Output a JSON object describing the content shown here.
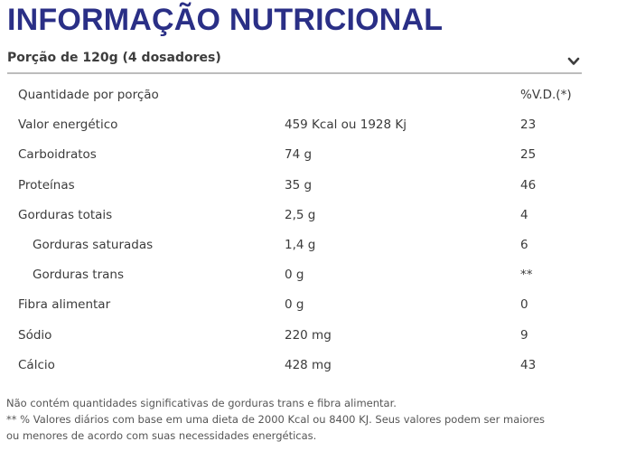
{
  "title": "INFORMAÇÃO NUTRICIONAL",
  "serving": {
    "label": "Porção de 120g (4 dosadores)",
    "expand_icon": "chevron-down-icon"
  },
  "table": {
    "header": {
      "name": "Quantidade por porção",
      "amount": "",
      "vd": "%V.D.(*)"
    },
    "rows": [
      {
        "name": "Valor energético",
        "amount": "459 Kcal ou 1928 Kj",
        "vd": "23",
        "indent": false
      },
      {
        "name": "Carboidratos",
        "amount": "74 g",
        "vd": "25",
        "indent": false
      },
      {
        "name": "Proteínas",
        "amount": "35 g",
        "vd": "46",
        "indent": false
      },
      {
        "name": "Gorduras totais",
        "amount": "2,5 g",
        "vd": "4",
        "indent": false
      },
      {
        "name": "Gorduras saturadas",
        "amount": "1,4 g",
        "vd": "6",
        "indent": true
      },
      {
        "name": "Gorduras trans",
        "amount": "0 g",
        "vd": "**",
        "indent": true
      },
      {
        "name": "Fibra alimentar",
        "amount": "0 g",
        "vd": "0",
        "indent": false
      },
      {
        "name": "Sódio",
        "amount": "220 mg",
        "vd": "9",
        "indent": false
      },
      {
        "name": "Cálcio",
        "amount": "428 mg",
        "vd": "43",
        "indent": false
      }
    ]
  },
  "footnotes": [
    "Não contém quantidades significativas de gorduras trans e fibra alimentar.",
    "** % Valores diários com base em uma dieta de 2000 Kcal ou 8400 KJ. Seus valores podem ser maiores ou menores de acordo com suas necessidades energéticas."
  ],
  "colors": {
    "title": "#2a2f86",
    "text": "#3b3b3b",
    "divider": "#bcbcbc"
  }
}
